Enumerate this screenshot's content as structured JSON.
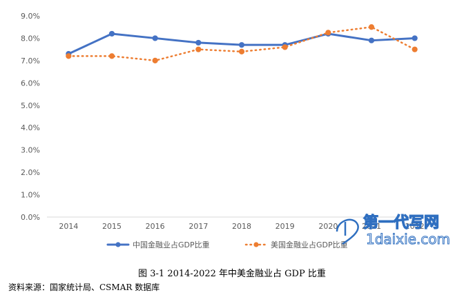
{
  "chart_data": {
    "type": "line",
    "categories": [
      "2014",
      "2015",
      "2016",
      "2017",
      "2018",
      "2019",
      "2020",
      "2021",
      "2022"
    ],
    "series": [
      {
        "name": "中国金融业占GDP比重",
        "values": [
          7.3,
          8.2,
          8.0,
          7.8,
          7.7,
          7.7,
          8.2,
          7.9,
          8.0
        ],
        "color": "#4472C4",
        "style": "solid"
      },
      {
        "name": "美国金融业占GDP比重",
        "values": [
          7.2,
          7.2,
          7.0,
          7.5,
          7.4,
          7.6,
          8.25,
          8.5,
          7.5
        ],
        "color": "#ED7D31",
        "style": "dotted"
      }
    ],
    "y_ticks": [
      "0.0%",
      "1.0%",
      "2.0%",
      "3.0%",
      "4.0%",
      "5.0%",
      "6.0%",
      "7.0%",
      "8.0%",
      "9.0%"
    ],
    "ylim": [
      0,
      9
    ],
    "grid": false,
    "legend_position": "bottom"
  },
  "caption": "图 3-1 2014-2022 年中美金融业占 GDP 比重",
  "source": "资料来源：国家统计局、CSMAR 数据库",
  "watermark": {
    "main": "第一代写网",
    "sub": "1daixie.com"
  }
}
